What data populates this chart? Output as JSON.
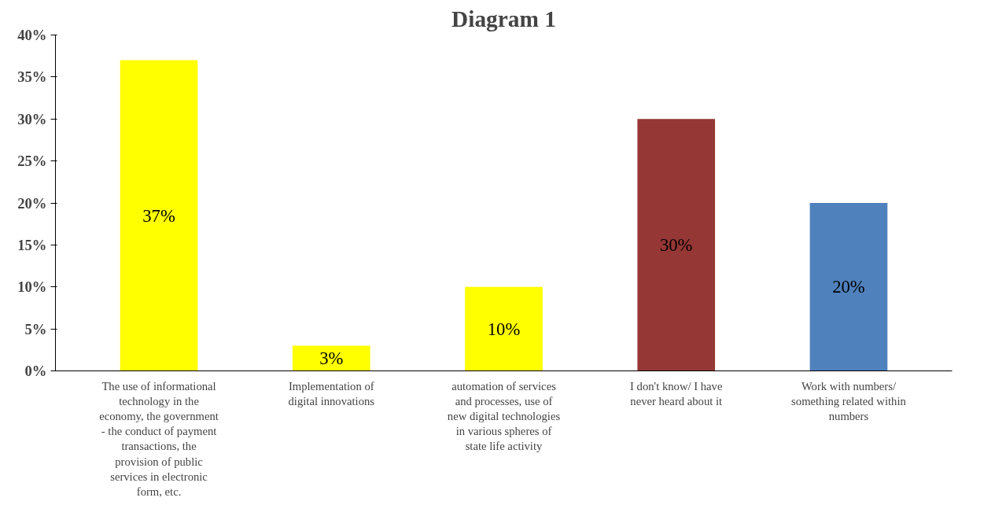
{
  "chart_data": {
    "type": "bar",
    "title": "Diagram 1",
    "categories": [
      "The use of informational technology in the economy, the government - the conduct of payment transactions, the provision of public services in electronic form, etc.",
      "Implementation of digital innovations",
      "automation of services and processes, use of new digital technologies in various spheres of state life activity",
      "I don't know/ I have never heard about it",
      "Work with numbers/ something related within numbers"
    ],
    "values": [
      37,
      3,
      10,
      30,
      20
    ],
    "colors": [
      "#ffff00",
      "#ffff00",
      "#ffff00",
      "#953735",
      "#4f81bd"
    ],
    "value_labels": [
      "37%",
      "3%",
      "10%",
      "30%",
      "20%"
    ],
    "ylim": [
      0,
      40
    ],
    "yticks": [
      {
        "value": 0,
        "label": "0%"
      },
      {
        "value": 5,
        "label": "5%"
      },
      {
        "value": 10,
        "label": "10%"
      },
      {
        "value": 15,
        "label": "15%"
      },
      {
        "value": 20,
        "label": "20%"
      },
      {
        "value": 25,
        "label": "25%"
      },
      {
        "value": 30,
        "label": "30%"
      },
      {
        "value": 35,
        "label": "35%"
      },
      {
        "value": 40,
        "label": "40%"
      }
    ],
    "grid": false
  }
}
